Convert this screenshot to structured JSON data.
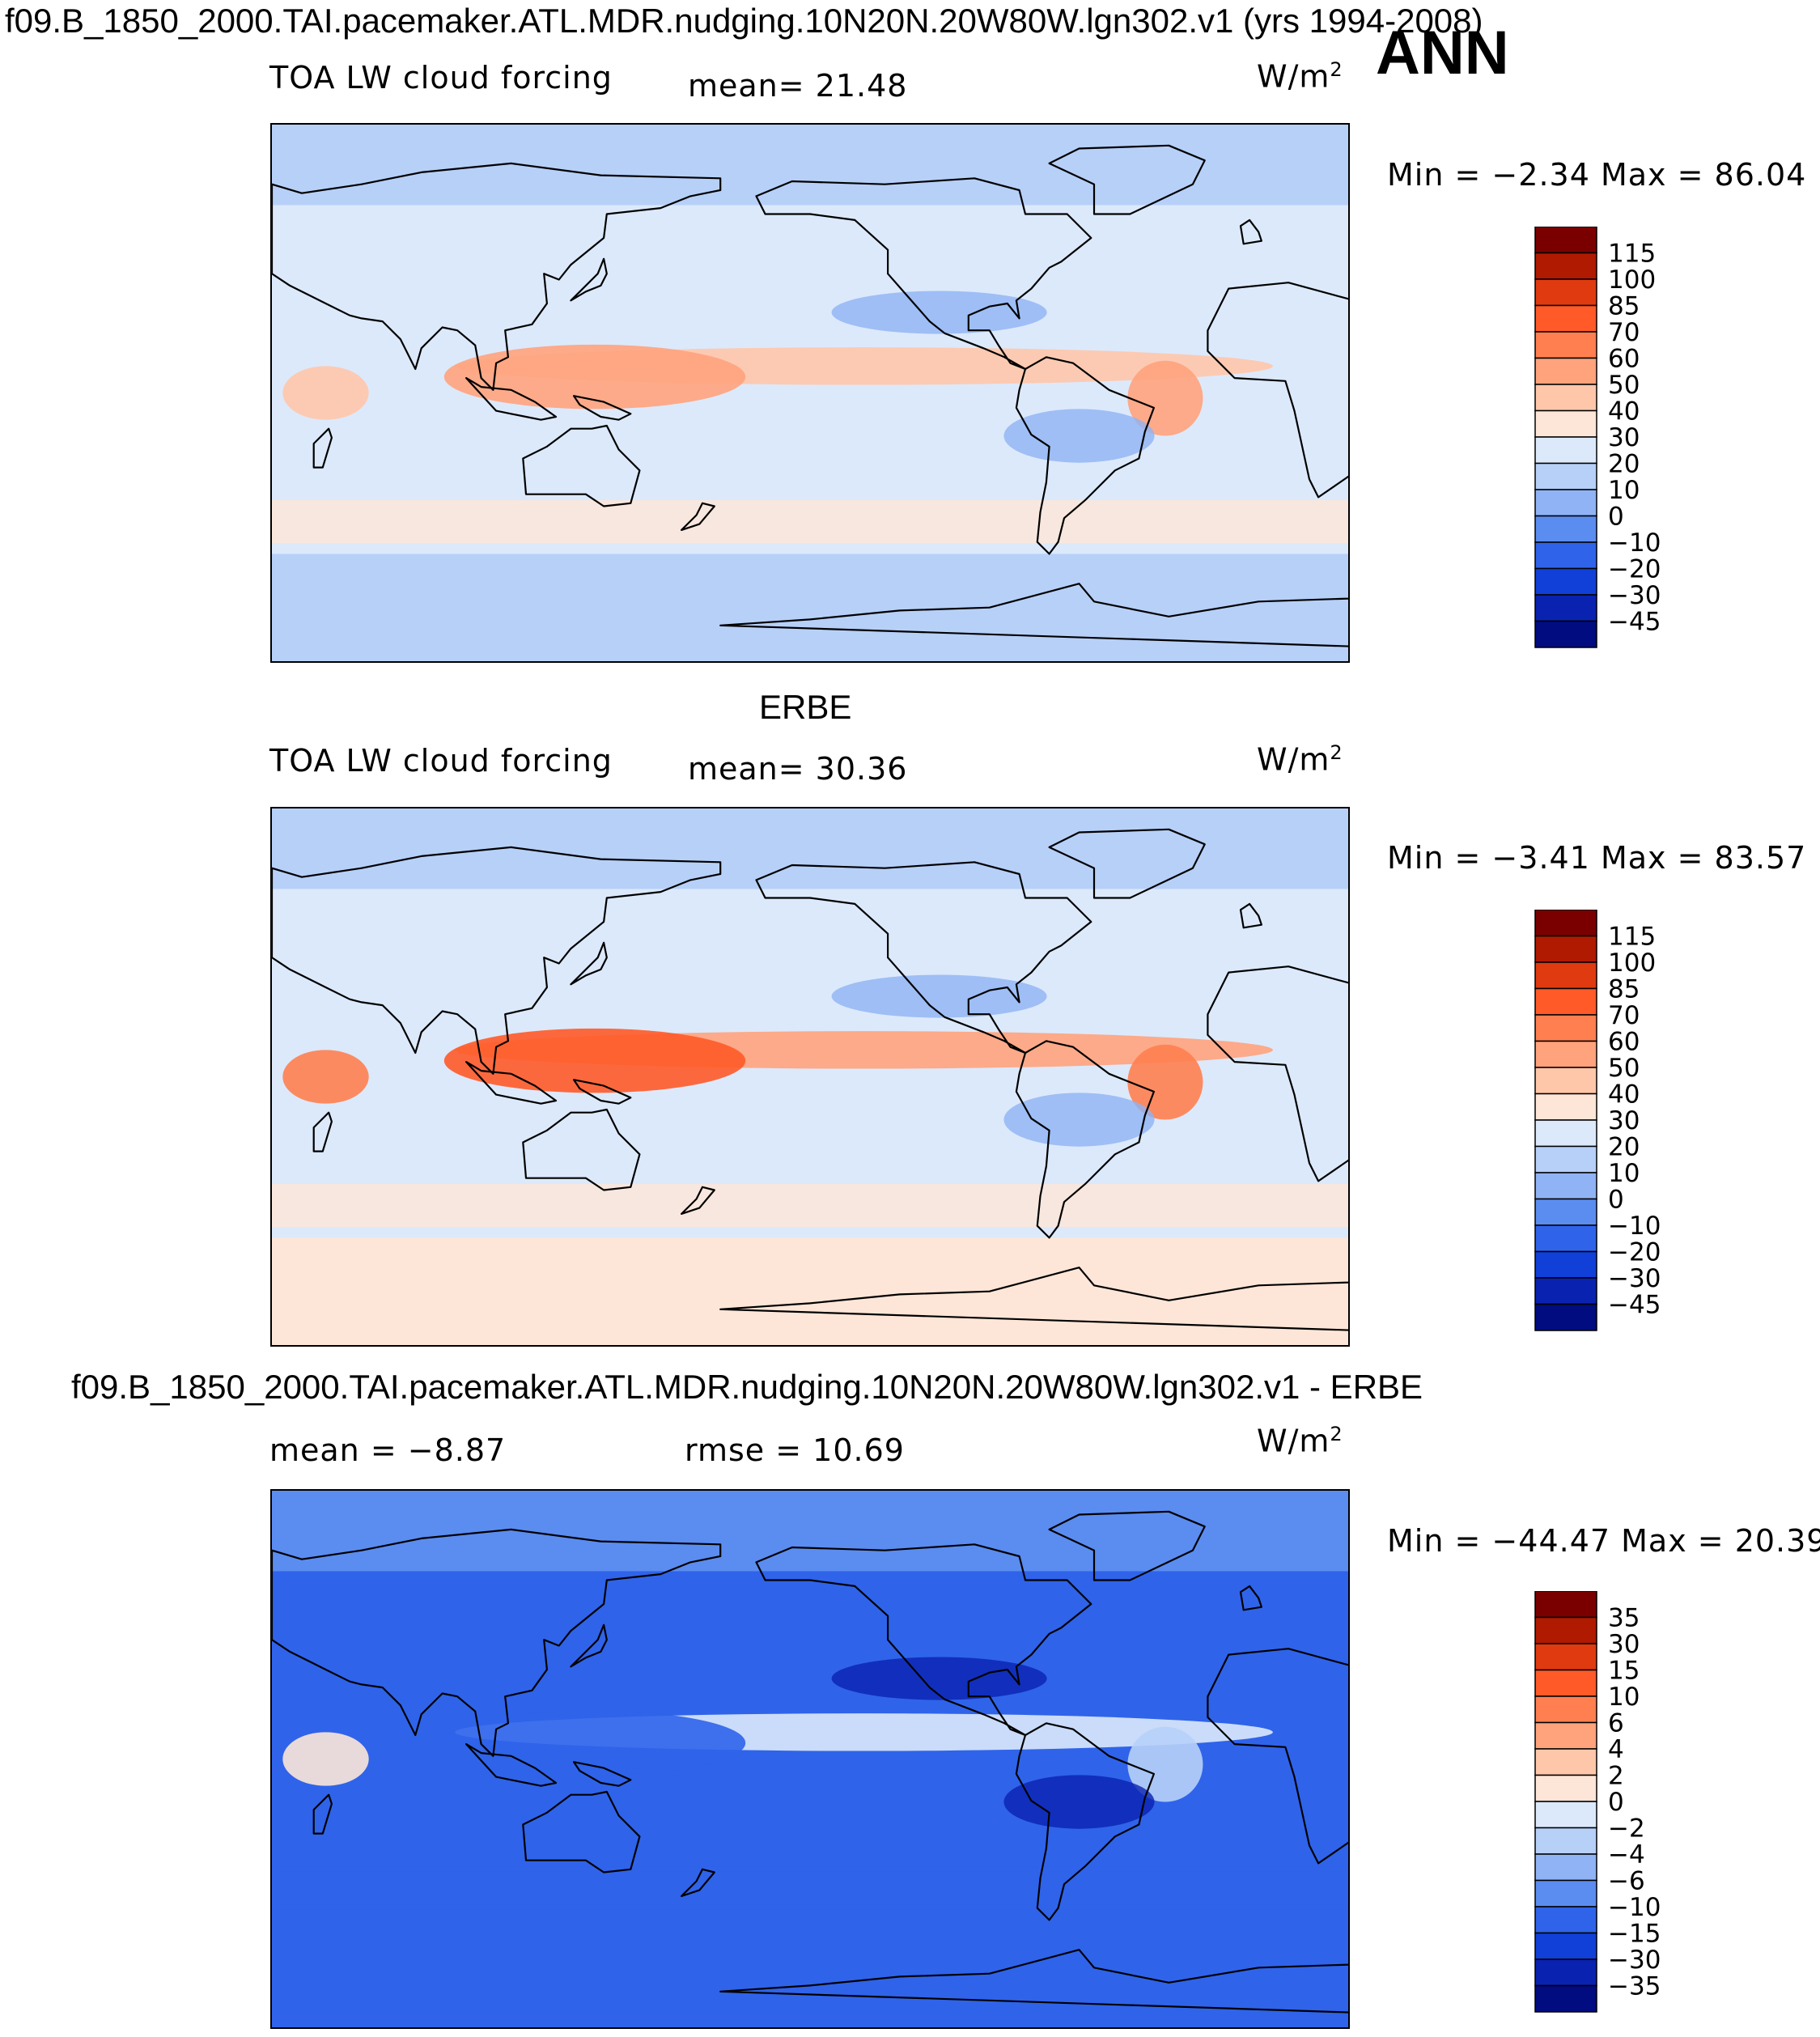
{
  "header": {
    "case_title": "f09.B_1850_2000.TAI.pacemaker.ATL.MDR.nudging.10N20N.20W80W.lgn302.v1 (yrs 1994-2008)",
    "season": "ANN"
  },
  "panels": [
    {
      "variable": "TOA LW cloud forcing",
      "stat1": "mean=   21.48",
      "stat2": "",
      "units": "W/m",
      "units_exp": "2",
      "minmax": "Min =   −2.34  Max =   86.04",
      "subtitle": "",
      "colorbar": [
        "115",
        "100",
        "85",
        "70",
        "60",
        "50",
        "40",
        "30",
        "20",
        "10",
        "0",
        "−10",
        "−20",
        "−30",
        "−45"
      ]
    },
    {
      "variable": "TOA LW cloud forcing",
      "stat1": "mean=   30.36",
      "stat2": "",
      "units": "W/m",
      "units_exp": "2",
      "minmax": "Min =   −3.41  Max =   83.57",
      "subtitle": "ERBE",
      "colorbar": [
        "115",
        "100",
        "85",
        "70",
        "60",
        "50",
        "40",
        "30",
        "20",
        "10",
        "0",
        "−10",
        "−20",
        "−30",
        "−45"
      ]
    },
    {
      "variable": "",
      "stat1": "mean =   −8.87",
      "stat2": "rmse =   10.69",
      "units": "W/m",
      "units_exp": "2",
      "minmax": "Min = −44.47  Max =   20.39",
      "subtitle": "f09.B_1850_2000.TAI.pacemaker.ATL.MDR.nudging.10N20N.20W80W.lgn302.v1 - ERBE",
      "colorbar": [
        "35",
        "30",
        "15",
        "10",
        "6",
        "4",
        "2",
        "0",
        "−2",
        "−4",
        "−6",
        "−10",
        "−15",
        "−30",
        "−35"
      ]
    }
  ],
  "chart_data": [
    {
      "type": "heatmap",
      "title": "TOA LW cloud forcing (model)",
      "mean": 21.48,
      "min": -2.34,
      "max": 86.04,
      "units": "W/m2",
      "levels": [
        115,
        100,
        85,
        70,
        60,
        50,
        40,
        30,
        20,
        10,
        0,
        -10,
        -20,
        -30,
        -45
      ],
      "colors": [
        "#7a0000",
        "#b01a00",
        "#e03a10",
        "#ff5a28",
        "#ff7f50",
        "#ffa37c",
        "#ffc7aa",
        "#fde6d8",
        "#dce9fb",
        "#b7d0f8",
        "#8fb3f4",
        "#5b8cf0",
        "#2f63ea",
        "#1040d8",
        "#0a22b0",
        "#000c80"
      ],
      "features": {
        "ocean_base": 8,
        "itcz": 6,
        "warm_pool": 5,
        "south_band": 7,
        "south_ocean": 9,
        "high_lat": 9,
        "africa": 6,
        "amazon": 5
      }
    },
    {
      "type": "heatmap",
      "title": "TOA LW cloud forcing (ERBE)",
      "mean": 30.36,
      "min": -3.41,
      "max": 83.57,
      "units": "W/m2",
      "levels": [
        115,
        100,
        85,
        70,
        60,
        50,
        40,
        30,
        20,
        10,
        0,
        -10,
        -20,
        -30,
        -45
      ],
      "colors": [
        "#7a0000",
        "#b01a00",
        "#e03a10",
        "#ff5a28",
        "#ff7f50",
        "#ffa37c",
        "#ffc7aa",
        "#fde6d8",
        "#dce9fb",
        "#b7d0f8",
        "#8fb3f4",
        "#5b8cf0",
        "#2f63ea",
        "#1040d8",
        "#0a22b0",
        "#000c80"
      ],
      "features": {
        "ocean_base": 8,
        "itcz": 5,
        "warm_pool": 3,
        "south_band": 7,
        "south_ocean": 7,
        "high_lat": 9,
        "africa": 4,
        "amazon": 4
      }
    },
    {
      "type": "heatmap",
      "title": "model - ERBE",
      "mean": -8.87,
      "rmse": 10.69,
      "min": -44.47,
      "max": 20.39,
      "units": "W/m2",
      "levels": [
        35,
        30,
        15,
        10,
        6,
        4,
        2,
        0,
        -2,
        -4,
        -6,
        -10,
        -15,
        -30,
        -35
      ],
      "colors": [
        "#7a0000",
        "#b01a00",
        "#e03a10",
        "#ff5a28",
        "#ff7f50",
        "#ffa37c",
        "#ffc7aa",
        "#fde6d8",
        "#dce9fb",
        "#b7d0f8",
        "#8fb3f4",
        "#5b8cf0",
        "#2f63ea",
        "#1040d8",
        "#0a22b0",
        "#000c80"
      ],
      "features": {
        "ocean_base": 12,
        "itcz": 8,
        "warm_pool": 12,
        "south_band": 12,
        "south_ocean": 12,
        "high_lat": 11,
        "africa": 7,
        "amazon": 9
      }
    }
  ]
}
